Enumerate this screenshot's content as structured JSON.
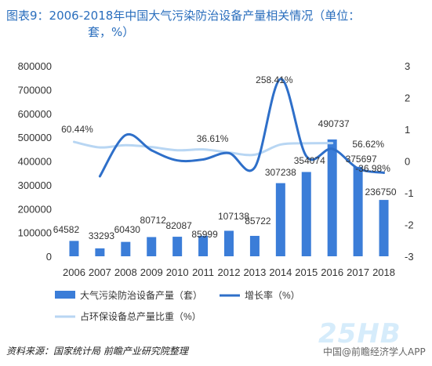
{
  "title": {
    "line1": "图表9：2006-2018年中国大气污染防治设备产量相关情况（单位：",
    "line2": "套，%）"
  },
  "chart_data": {
    "type": "bar",
    "categories": [
      "2006",
      "2007",
      "2008",
      "2009",
      "2010",
      "2011",
      "2012",
      "2013",
      "2014",
      "2015",
      "2016",
      "2017",
      "2018"
    ],
    "series": [
      {
        "name": "大气污染防治设备产量（套）",
        "type": "bar",
        "axis": "left",
        "color": "#3b7dd8",
        "values": [
          64582,
          33293,
          60430,
          80712,
          82087,
          85999,
          107138,
          85722,
          307238,
          354074,
          490737,
          375697,
          236750
        ],
        "labels": [
          "64582",
          "33293",
          "60430",
          "80712",
          "82087",
          "85999",
          "107138",
          "85722",
          "307238",
          "354074",
          "490737",
          "375697",
          "236750"
        ]
      },
      {
        "name": "增长率（%）",
        "type": "line",
        "axis": "right",
        "color": "#2e6fc9",
        "values": [
          null,
          -0.48,
          0.82,
          0.34,
          0.02,
          0.05,
          0.25,
          -0.2,
          2.584,
          0.152,
          0.386,
          -0.234,
          -0.37
        ],
        "labels": [
          "",
          "",
          "",
          "",
          "",
          "",
          "",
          "",
          "258.41%",
          "",
          "",
          "",
          "-36.98%"
        ]
      },
      {
        "name": "占环保设备总产量比重（%）",
        "type": "line",
        "axis": "right",
        "color": "#b8d6f3",
        "values": [
          0.604,
          0.43,
          0.5,
          0.44,
          0.34,
          0.366,
          0.27,
          0.2,
          0.52,
          0.56,
          0.566,
          null,
          null
        ],
        "labels": [
          "60.44%",
          "",
          "",
          "",
          "",
          "36.61%",
          "",
          "",
          "",
          "",
          "56.62%",
          "",
          ""
        ]
      }
    ],
    "y_left": {
      "min": 0,
      "max": 800000,
      "ticks": [
        0,
        100000,
        200000,
        300000,
        400000,
        500000,
        600000,
        700000,
        800000
      ]
    },
    "y_right": {
      "min": -3,
      "max": 3,
      "ticks": [
        -3,
        -2,
        -1,
        0,
        1,
        2,
        3
      ]
    },
    "grid": false,
    "legend_position": "bottom"
  },
  "source": "资料来源：国家统计局 前瞻产业研究院整理",
  "watermark": {
    "brand": "25HB",
    "sub": "中国@前瞻经济学人APP"
  }
}
